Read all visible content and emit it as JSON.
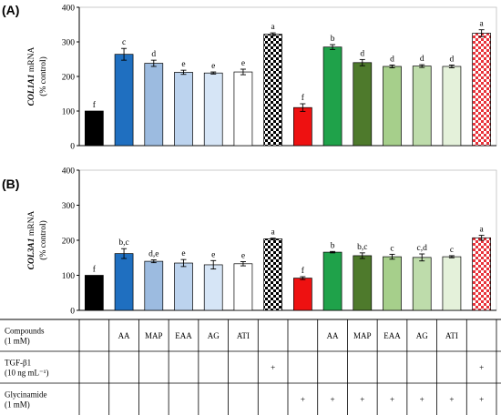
{
  "chart_data": [
    {
      "type": "bar",
      "panel": "(A)",
      "ylabel_gene": "COL1A1",
      "ylabel_rest": " mRNA",
      "ylabel_line2": "(% control)",
      "ylim": [
        0,
        400
      ],
      "yticks": [
        "0",
        "100",
        "200",
        "300",
        "400"
      ],
      "values": [
        100,
        264,
        238,
        212,
        210,
        213,
        322,
        110,
        285,
        240,
        229,
        230,
        229,
        325
      ],
      "errors": [
        0,
        17,
        9,
        6,
        3,
        8,
        4,
        11,
        7,
        9,
        4,
        4,
        4,
        10
      ],
      "significance": [
        "f",
        "c",
        "d",
        "e",
        "e",
        "e",
        "a",
        "f",
        "b",
        "d",
        "d",
        "d",
        "d",
        "a"
      ]
    },
    {
      "type": "bar",
      "panel": "(B)",
      "ylabel_gene": "COL3A1",
      "ylabel_rest": " mRNA",
      "ylabel_line2": "(% control)",
      "ylim": [
        0,
        400
      ],
      "yticks": [
        "0",
        "100",
        "200",
        "300",
        "400"
      ],
      "values": [
        100,
        162,
        140,
        135,
        130,
        133,
        204,
        92,
        166,
        156,
        153,
        151,
        153,
        207
      ],
      "errors": [
        0,
        14,
        4,
        10,
        12,
        6,
        2,
        4,
        2,
        8,
        7,
        10,
        3,
        7
      ],
      "significance": [
        "f",
        "b,c",
        "d,e",
        "e",
        "e",
        "e",
        "a",
        "f",
        "b",
        "b,c",
        "c",
        "c,d",
        "c",
        "a"
      ]
    }
  ],
  "bar_styles": [
    {
      "fill": "#000000",
      "pattern": "none"
    },
    {
      "fill": "#1f6fc0",
      "pattern": "none"
    },
    {
      "fill": "#9cbbe0",
      "pattern": "none"
    },
    {
      "fill": "#bcd3ee",
      "pattern": "none"
    },
    {
      "fill": "#d6e5f6",
      "pattern": "none"
    },
    {
      "fill": "#ffffff",
      "pattern": "none"
    },
    {
      "fill": "#000000",
      "pattern": "checker-black"
    },
    {
      "fill": "#ee1111",
      "pattern": "none"
    },
    {
      "fill": "#1fa24a",
      "pattern": "none"
    },
    {
      "fill": "#4e7a2c",
      "pattern": "none"
    },
    {
      "fill": "#a6cf8b",
      "pattern": "none"
    },
    {
      "fill": "#bedcab",
      "pattern": "none"
    },
    {
      "fill": "#e4f1da",
      "pattern": "none"
    },
    {
      "fill": "#e8323a",
      "pattern": "checker-red"
    }
  ],
  "table": {
    "rows": [
      {
        "label1": "Compounds",
        "label2": "(1 mM)",
        "cells": [
          "",
          "AA",
          "MAP",
          "EAA",
          "AG",
          "ATI",
          "",
          "",
          "AA",
          "MAP",
          "EAA",
          "AG",
          "ATI",
          ""
        ]
      },
      {
        "label1": "TGF-β1",
        "label2": "(10 ng mL⁻¹)",
        "cells": [
          "",
          "",
          "",
          "",
          "",
          "",
          "+",
          "",
          "",
          "",
          "",
          "",
          "",
          "+"
        ]
      },
      {
        "label1": "Glycinamide",
        "label2": "(1 mM)",
        "cells": [
          "",
          "",
          "",
          "",
          "",
          "",
          "",
          "+",
          "+",
          "+",
          "+",
          "+",
          "+",
          "+"
        ]
      }
    ]
  }
}
